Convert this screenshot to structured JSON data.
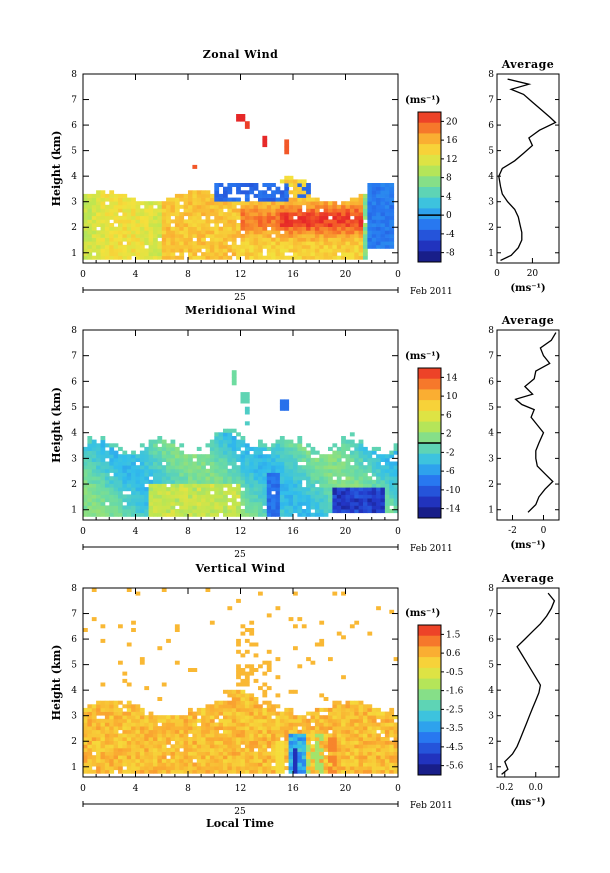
{
  "chart_data": [
    {
      "type": "heatmap",
      "title": "Zonal Wind",
      "ylabel": "Height (km)",
      "y_ticks": [
        "1",
        "2",
        "3",
        "4",
        "5",
        "6",
        "7",
        "8"
      ],
      "x_ticks": [
        "0",
        "4",
        "8",
        "12",
        "16",
        "20",
        "0"
      ],
      "date_day": "25",
      "date_month_year": "Feb 2011",
      "xlim": [
        0,
        24
      ],
      "ylim": [
        0.6,
        8
      ],
      "colorbar": {
        "unit": "(ms⁻¹)",
        "ticks": [
          "20",
          "16",
          "12",
          "8",
          "4",
          "0",
          "-4",
          "-8"
        ],
        "range": [
          -10,
          22
        ],
        "black_line_at": 0
      },
      "average": {
        "title": "Average",
        "x_ticks": [
          "0",
          "20"
        ],
        "xlim": [
          0,
          35
        ],
        "xunit": "(ms⁻¹)",
        "profile": [
          [
            0.7,
            2
          ],
          [
            0.9,
            8
          ],
          [
            1.2,
            12
          ],
          [
            1.5,
            14
          ],
          [
            1.8,
            14
          ],
          [
            2.1,
            13
          ],
          [
            2.4,
            12
          ],
          [
            2.7,
            10
          ],
          [
            3.0,
            6
          ],
          [
            3.3,
            3
          ],
          [
            3.6,
            2
          ],
          [
            4.0,
            1
          ],
          [
            4.3,
            3
          ],
          [
            4.6,
            10
          ],
          [
            4.9,
            15
          ],
          [
            5.2,
            20
          ],
          [
            5.5,
            18
          ],
          [
            5.8,
            24
          ],
          [
            6.1,
            33
          ],
          [
            6.3,
            30
          ],
          [
            6.6,
            25
          ],
          [
            6.9,
            20
          ],
          [
            7.2,
            15
          ],
          [
            7.4,
            8
          ],
          [
            7.6,
            18
          ],
          [
            7.8,
            6
          ]
        ]
      },
      "features": [
        {
          "name": "low-level westerly band",
          "x": [
            0,
            24
          ],
          "y": [
            0.9,
            3.3
          ],
          "value": "10 to 20 ms⁻¹"
        },
        {
          "name": "strong core",
          "x": [
            14,
            22
          ],
          "y": [
            1.5,
            3.0
          ],
          "value": "up to 22 ms⁻¹"
        },
        {
          "name": "easterly patches",
          "x": [
            10,
            15.5
          ],
          "y": [
            3.0,
            3.8
          ],
          "value": "about -4 ms⁻¹"
        },
        {
          "name": "easterly column",
          "x": [
            21.5,
            24
          ],
          "y": [
            1.2,
            3.7
          ],
          "value": "about -3 ms⁻¹"
        }
      ]
    },
    {
      "type": "heatmap",
      "title": "Meridional Wind",
      "ylabel": "Height (km)",
      "y_ticks": [
        "1",
        "2",
        "3",
        "4",
        "5",
        "6",
        "7",
        "8"
      ],
      "x_ticks": [
        "0",
        "4",
        "8",
        "12",
        "16",
        "20",
        "0"
      ],
      "date_day": "25",
      "date_month_year": "Feb 2011",
      "xlim": [
        0,
        24
      ],
      "ylim": [
        0.6,
        8
      ],
      "colorbar": {
        "unit": "(ms⁻¹)",
        "ticks": [
          "14",
          "10",
          "6",
          "2",
          "-2",
          "-6",
          "-10",
          "-14"
        ],
        "range": [
          -15,
          15
        ],
        "black_line_at": 0
      },
      "average": {
        "title": "Average",
        "x_ticks": [
          "-2",
          "0"
        ],
        "xlim": [
          -3,
          1
        ],
        "xunit": "(ms⁻¹)",
        "profile": [
          [
            0.9,
            -1
          ],
          [
            1.2,
            -0.5
          ],
          [
            1.5,
            -0.3
          ],
          [
            1.8,
            0.1
          ],
          [
            2.1,
            0.6
          ],
          [
            2.4,
            0.1
          ],
          [
            2.7,
            -0.4
          ],
          [
            3.0,
            -0.5
          ],
          [
            3.3,
            -0.5
          ],
          [
            3.6,
            -0.3
          ],
          [
            4.0,
            0.0
          ],
          [
            4.3,
            -0.4
          ],
          [
            4.6,
            -0.8
          ],
          [
            4.9,
            -0.6
          ],
          [
            5.1,
            -1.4
          ],
          [
            5.3,
            -1.8
          ],
          [
            5.5,
            -0.7
          ],
          [
            5.8,
            -1.2
          ],
          [
            6.1,
            -0.6
          ],
          [
            6.4,
            -0.5
          ],
          [
            6.7,
            0.4
          ],
          [
            7.0,
            0.0
          ],
          [
            7.3,
            -0.2
          ],
          [
            7.6,
            0.5
          ],
          [
            7.9,
            0.8
          ]
        ]
      },
      "features": [
        {
          "name": "low-level band",
          "x": [
            0,
            24
          ],
          "y": [
            0.9,
            3.6
          ],
          "value": "-4 to 2 ms⁻¹"
        },
        {
          "name": "southerly core",
          "x": [
            19,
            23
          ],
          "y": [
            0.9,
            1.9
          ],
          "value": "-10 to -14 ms⁻¹"
        }
      ]
    },
    {
      "type": "heatmap",
      "title": "Vertical Wind",
      "ylabel": "Height (km)",
      "xlabel": "Local Time",
      "y_ticks": [
        "1",
        "2",
        "3",
        "4",
        "5",
        "6",
        "7",
        "8"
      ],
      "x_ticks": [
        "0",
        "4",
        "8",
        "12",
        "16",
        "20",
        "0"
      ],
      "date_day": "25",
      "date_month_year": "Feb 2011",
      "xlim": [
        0,
        24
      ],
      "ylim": [
        0.6,
        8
      ],
      "colorbar": {
        "unit": "(ms⁻¹)",
        "ticks": [
          "1.5",
          "0.6",
          "-0.5",
          "-1.6",
          "-2.5",
          "-3.5",
          "-4.5",
          "-5.6"
        ],
        "range": [
          -6.1,
          2.0
        ]
      },
      "average": {
        "title": "Average",
        "x_ticks": [
          "-0.2",
          "0.0"
        ],
        "xlim": [
          -0.25,
          0.15
        ],
        "xunit": "(ms⁻¹)",
        "profile": [
          [
            0.7,
            -0.22
          ],
          [
            0.9,
            -0.18
          ],
          [
            1.2,
            -0.2
          ],
          [
            1.5,
            -0.15
          ],
          [
            1.8,
            -0.12
          ],
          [
            2.1,
            -0.1
          ],
          [
            2.4,
            -0.08
          ],
          [
            2.7,
            -0.06
          ],
          [
            3.0,
            -0.04
          ],
          [
            3.3,
            -0.02
          ],
          [
            3.6,
            0.0
          ],
          [
            3.9,
            0.02
          ],
          [
            4.2,
            0.03
          ],
          [
            4.5,
            0.0
          ],
          [
            4.8,
            -0.03
          ],
          [
            5.1,
            -0.06
          ],
          [
            5.4,
            -0.09
          ],
          [
            5.7,
            -0.12
          ],
          [
            6.0,
            -0.07
          ],
          [
            6.3,
            -0.02
          ],
          [
            6.6,
            0.03
          ],
          [
            6.9,
            0.07
          ],
          [
            7.2,
            0.1
          ],
          [
            7.5,
            0.12
          ],
          [
            7.8,
            0.08
          ]
        ]
      },
      "features": [
        {
          "name": "weak ascent band",
          "x": [
            0,
            24
          ],
          "y": [
            0.7,
            3.7
          ],
          "value": "about 0.3 ms⁻¹"
        },
        {
          "name": "downdraft streak",
          "x": [
            16,
            17
          ],
          "y": [
            0.7,
            2.2
          ],
          "value": "down to -5.6 ms⁻¹"
        }
      ]
    }
  ]
}
